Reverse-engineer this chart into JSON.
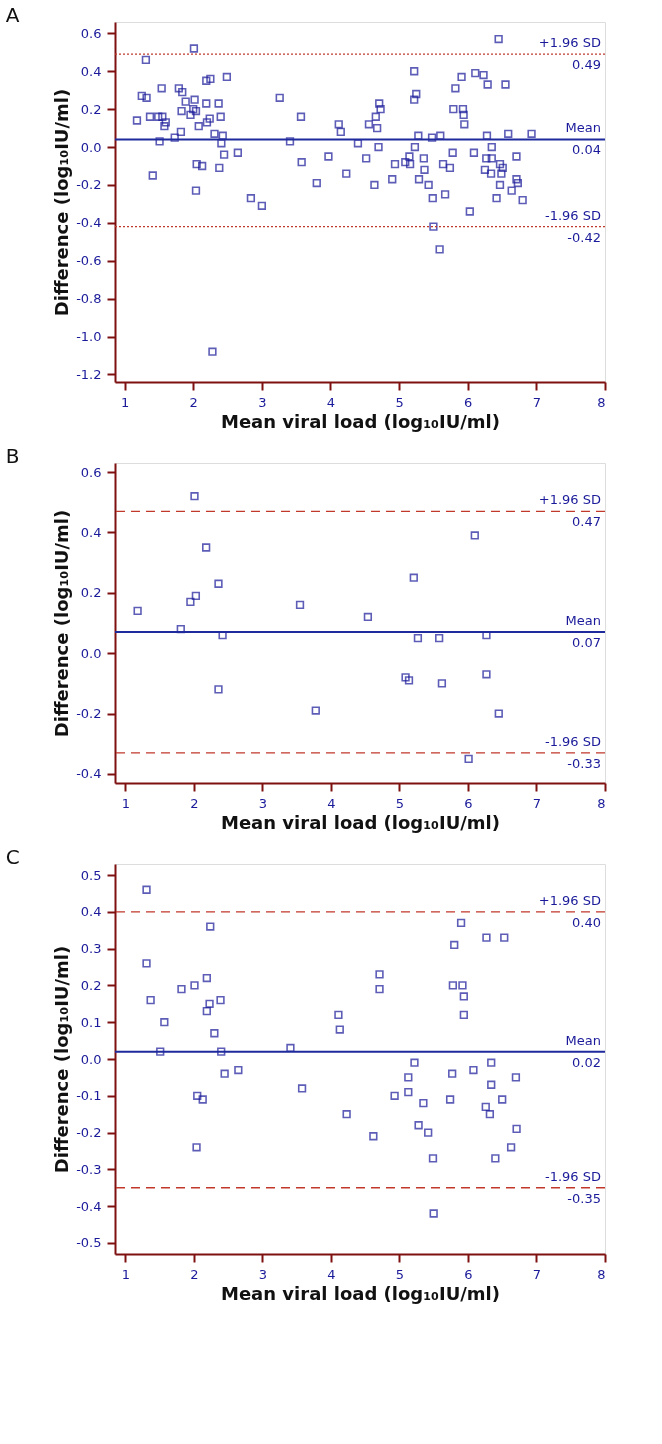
{
  "chart_data": [
    {
      "type": "scatter",
      "title": "A",
      "xlabel": "Mean  viral load  (log₁₀IU/ml)",
      "ylabel": "Difference (log₁₀IU/ml)",
      "marker": "square",
      "grid": false,
      "annotations": [
        {
          "text": "0.49",
          "y": 0.49
        },
        {
          "text": "0.04",
          "y": 0.04
        },
        {
          "text": "-0.42",
          "y": -0.42
        }
      ],
      "xlim": [
        0.86,
        8
      ],
      "ylim": [
        -1.24,
        0.66
      ],
      "xticks": [
        1,
        2,
        3,
        4,
        5,
        6,
        7,
        8
      ],
      "yticks": [
        {
          "value": -1.2,
          "label": "-1.2"
        },
        {
          "value": -1.0,
          "label": "-1.0"
        },
        {
          "value": -0.8,
          "label": "-0.8"
        },
        {
          "value": -0.6,
          "label": "-0.6"
        },
        {
          "value": -0.4,
          "label": "-0.4"
        },
        {
          "value": -0.2,
          "label": "-0.2"
        },
        {
          "value": 0,
          "label": "0.0"
        },
        {
          "value": 0.2,
          "label": "0.2"
        },
        {
          "value": 0.4,
          "label": "0.4"
        },
        {
          "value": 0.6,
          "label": "0.6"
        }
      ],
      "ref_lines": [
        {
          "axis": "y",
          "value": 0.49,
          "label": "+1.96 SD",
          "color": "#c0392b",
          "line_style": "dotted"
        },
        {
          "axis": "y",
          "value": 0.04,
          "label": "Mean",
          "color": "#1f2a9c",
          "line_style": "solid"
        },
        {
          "axis": "y",
          "value": -0.42,
          "label": "-1.96 SD",
          "color": "#c0392b",
          "line_style": "dotted"
        }
      ],
      "series": [
        {
          "color": "#1a1a9a",
          "x": [
            1.18,
            1.25,
            1.32,
            1.31,
            1.37,
            1.41,
            1.49,
            1.55,
            1.54,
            1.51,
            1.58,
            1.6,
            1.73,
            1.79,
            1.84,
            1.82,
            1.83,
            1.89,
            1.96,
            2.01,
            2.02,
            2.0,
            2.04,
            2.05,
            2.04,
            2.08,
            2.13,
            2.19,
            2.25,
            2.19,
            2.2,
            2.24,
            2.28,
            2.31,
            2.37,
            2.38,
            2.4,
            2.43,
            2.41,
            2.45,
            2.49,
            2.65,
            2.84,
            3.0,
            3.26,
            3.41,
            3.57,
            3.58,
            3.8,
            3.97,
            4.12,
            4.15,
            4.23,
            4.4,
            4.52,
            4.56,
            4.64,
            4.66,
            4.68,
            4.7,
            4.71,
            4.73,
            4.9,
            4.94,
            5.09,
            5.15,
            5.16,
            5.22,
            5.25,
            5.22,
            5.23,
            5.28,
            5.29,
            5.36,
            5.37,
            5.43,
            5.48,
            5.49,
            5.5,
            5.6,
            5.59,
            5.64,
            5.67,
            5.74,
            5.78,
            5.79,
            5.82,
            5.91,
            5.93,
            5.94,
            5.95,
            6.03,
            6.09,
            6.11,
            6.23,
            6.29,
            6.28,
            6.27,
            6.35,
            6.35,
            6.25,
            6.34,
            6.42,
            6.45,
            6.47,
            6.51,
            6.49,
            6.47,
            6.55,
            6.59,
            6.64,
            6.71,
            6.71,
            6.73,
            6.8,
            6.93
          ],
          "values": [
            0.14,
            0.27,
            0.26,
            0.46,
            0.16,
            -0.15,
            0.16,
            0.16,
            0.31,
            0.03,
            0.11,
            0.13,
            0.05,
            0.31,
            0.29,
            0.08,
            0.19,
            0.24,
            0.17,
            0.52,
            0.25,
            0.2,
            0.19,
            -0.09,
            -0.23,
            0.11,
            -0.1,
            0.35,
            0.36,
            0.23,
            0.13,
            0.15,
            -1.08,
            0.07,
            0.23,
            -0.11,
            0.16,
            0.06,
            0.02,
            -0.04,
            0.37,
            -0.03,
            -0.27,
            -0.31,
            0.26,
            0.03,
            0.16,
            -0.08,
            -0.19,
            -0.05,
            0.12,
            0.08,
            -0.14,
            0.02,
            -0.06,
            0.12,
            -0.2,
            0.16,
            0.1,
            0.0,
            0.23,
            0.2,
            -0.17,
            -0.09,
            -0.08,
            -0.05,
            -0.09,
            0.4,
            0.28,
            0.25,
            0.0,
            0.06,
            -0.17,
            -0.06,
            -0.12,
            -0.2,
            0.05,
            -0.27,
            -0.42,
            0.06,
            -0.54,
            -0.09,
            -0.25,
            -0.11,
            -0.03,
            0.2,
            0.31,
            0.37,
            0.2,
            0.17,
            0.12,
            -0.34,
            -0.03,
            0.39,
            0.38,
            0.33,
            0.06,
            -0.06,
            -0.06,
            0.0,
            -0.12,
            -0.14,
            -0.27,
            0.57,
            -0.09,
            -0.11,
            -0.14,
            -0.2,
            0.33,
            0.07,
            -0.23,
            -0.05,
            -0.17,
            -0.19,
            -0.28,
            0.07
          ]
        }
      ]
    },
    {
      "type": "scatter",
      "title": "B",
      "xlabel": "Mean  viral load  (log₁₀IU/ml)",
      "ylabel": "Difference (log₁₀IU/ml)",
      "marker": "square",
      "grid": false,
      "annotations": [
        {
          "text": "0.47",
          "y": 0.47
        },
        {
          "text": "0.07",
          "y": 0.07
        },
        {
          "text": "-0.33",
          "y": -0.33
        }
      ],
      "xlim": [
        0.85,
        8
      ],
      "ylim": [
        -0.43,
        0.63
      ],
      "xticks": [
        1,
        2,
        3,
        4,
        5,
        6,
        7,
        8
      ],
      "yticks": [
        {
          "value": -0.4,
          "label": "-0.4"
        },
        {
          "value": -0.2,
          "label": "-0.2"
        },
        {
          "value": 0,
          "label": "0.0"
        },
        {
          "value": 0.2,
          "label": "0.2"
        },
        {
          "value": 0.4,
          "label": "0.4"
        },
        {
          "value": 0.6,
          "label": "0.6"
        }
      ],
      "ref_lines": [
        {
          "axis": "y",
          "value": 0.47,
          "label": "+1.96 SD",
          "color": "#c0392b",
          "line_style": "dashed"
        },
        {
          "axis": "y",
          "value": 0.07,
          "label": "Mean",
          "color": "#1f2a9c",
          "line_style": "solid"
        },
        {
          "axis": "y",
          "value": -0.33,
          "label": "-1.96 SD",
          "color": "#c0392b",
          "line_style": "dashed"
        }
      ],
      "series": [
        {
          "color": "#1a1a9a",
          "x": [
            1.18,
            1.81,
            1.95,
            2.01,
            2.03,
            2.18,
            2.36,
            2.42,
            2.36,
            3.55,
            3.78,
            4.54,
            5.09,
            5.14,
            5.21,
            5.27,
            5.58,
            5.62,
            6.01,
            6.1,
            6.27,
            6.27,
            6.45
          ],
          "values": [
            0.14,
            0.08,
            0.17,
            0.52,
            0.19,
            0.35,
            0.23,
            0.06,
            -0.12,
            0.16,
            -0.19,
            0.12,
            -0.08,
            -0.09,
            0.25,
            0.05,
            0.05,
            -0.1,
            -0.35,
            0.39,
            0.06,
            -0.07,
            -0.2
          ]
        }
      ]
    },
    {
      "type": "scatter",
      "title": "C",
      "xlabel": "Mean  viral load  (log₁₀IU/ml)",
      "ylabel": "Difference (log₁₀IU/ml)",
      "marker": "square",
      "grid": false,
      "annotations": [
        {
          "text": "0.40",
          "y": 0.4
        },
        {
          "text": "0.02",
          "y": 0.02
        },
        {
          "text": "-0.35",
          "y": -0.35
        }
      ],
      "xlim": [
        0.85,
        8
      ],
      "ylim": [
        -0.53,
        0.53
      ],
      "xticks": [
        1,
        2,
        3,
        4,
        5,
        6,
        7,
        8
      ],
      "yticks": [
        {
          "value": -0.5,
          "label": "-0.5"
        },
        {
          "value": -0.4,
          "label": "-0.4"
        },
        {
          "value": -0.3,
          "label": "-0.3"
        },
        {
          "value": -0.2,
          "label": "-0.2"
        },
        {
          "value": -0.1,
          "label": "-0.1"
        },
        {
          "value": 0,
          "label": "0.0"
        },
        {
          "value": 0.1,
          "label": "0.1"
        },
        {
          "value": 0.2,
          "label": "0.2"
        },
        {
          "value": 0.3,
          "label": "0.3"
        },
        {
          "value": 0.4,
          "label": "0.4"
        },
        {
          "value": 0.5,
          "label": "0.5"
        }
      ],
      "ref_lines": [
        {
          "axis": "y",
          "value": 0.4,
          "label": "+1.96 SD",
          "color": "#c0392b",
          "line_style": "dashed"
        },
        {
          "axis": "y",
          "value": 0.02,
          "label": "Mean",
          "color": "#1f2a9c",
          "line_style": "solid"
        },
        {
          "axis": "y",
          "value": -0.35,
          "label": "-1.96 SD",
          "color": "#c0392b",
          "line_style": "dashed"
        }
      ],
      "series": [
        {
          "color": "#1a1a9a",
          "x": [
            1.31,
            1.31,
            1.37,
            1.57,
            1.51,
            1.82,
            2.01,
            2.05,
            2.13,
            2.04,
            2.19,
            2.24,
            2.23,
            2.19,
            2.3,
            2.39,
            2.4,
            2.45,
            2.65,
            3.41,
            3.58,
            4.11,
            4.13,
            4.23,
            4.62,
            4.71,
            4.71,
            4.93,
            5.13,
            5.13,
            5.22,
            5.28,
            5.35,
            5.42,
            5.49,
            5.5,
            5.74,
            5.77,
            5.8,
            5.78,
            5.9,
            5.92,
            5.94,
            5.94,
            6.08,
            6.27,
            6.26,
            6.32,
            6.34,
            6.34,
            6.4,
            6.5,
            6.53,
            6.63,
            6.7,
            6.71
          ],
          "values": [
            0.46,
            0.26,
            0.16,
            0.1,
            0.02,
            0.19,
            0.2,
            -0.1,
            -0.11,
            -0.24,
            0.22,
            0.36,
            0.15,
            0.13,
            0.07,
            0.16,
            0.02,
            -0.04,
            -0.03,
            0.03,
            -0.08,
            0.12,
            0.08,
            -0.15,
            -0.21,
            0.23,
            0.19,
            -0.1,
            -0.05,
            -0.09,
            -0.01,
            -0.18,
            -0.12,
            -0.2,
            -0.27,
            -0.42,
            -0.11,
            -0.04,
            0.31,
            0.2,
            0.37,
            0.2,
            0.17,
            0.12,
            -0.03,
            0.33,
            -0.13,
            -0.15,
            -0.01,
            -0.07,
            -0.27,
            -0.11,
            0.33,
            -0.24,
            -0.05,
            -0.19
          ]
        }
      ]
    }
  ]
}
